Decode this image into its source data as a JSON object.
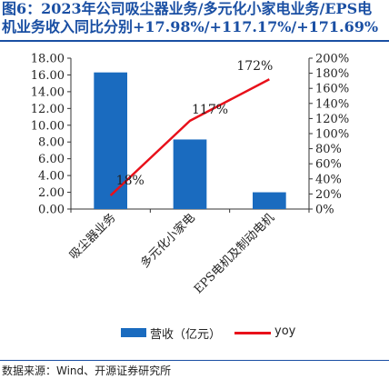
{
  "header": {
    "title_line1": "图6：2023年公司吸尘器业务/多元化小家电业务/EPS电",
    "title_line2": "机业务收入同比分别+17.98%/+117.17%/+171.69%"
  },
  "chart_data": {
    "type": "bar",
    "categories": [
      "吸尘器业务",
      "多元化小家电",
      "EPS电机及制动电机"
    ],
    "series": [
      {
        "name": "营收（亿元）",
        "type": "bar",
        "axis": "left",
        "values": [
          16.3,
          8.3,
          2.0
        ],
        "color": "#1a6bbf"
      },
      {
        "name": "yoy",
        "type": "line",
        "axis": "right",
        "values": [
          0.18,
          1.17,
          1.72
        ],
        "color": "#e8101a"
      }
    ],
    "data_labels": [
      "18%",
      "117%",
      "172%"
    ],
    "y_left": {
      "min": 0,
      "max": 18,
      "step": 2,
      "tick_labels": [
        "0.00",
        "2.00",
        "4.00",
        "6.00",
        "8.00",
        "10.00",
        "12.00",
        "14.00",
        "16.00",
        "18.00"
      ]
    },
    "y_right": {
      "min": 0,
      "max": 2.0,
      "step": 0.2,
      "tick_labels": [
        "0%",
        "20%",
        "40%",
        "60%",
        "80%",
        "100%",
        "120%",
        "140%",
        "160%",
        "180%",
        "200%"
      ]
    },
    "grid": false,
    "legend_position": "bottom"
  },
  "legend": {
    "bar_label": "营收（亿元）",
    "line_label": "yoy"
  },
  "source": {
    "text": "数据来源：Wind、开源证券研究所"
  }
}
